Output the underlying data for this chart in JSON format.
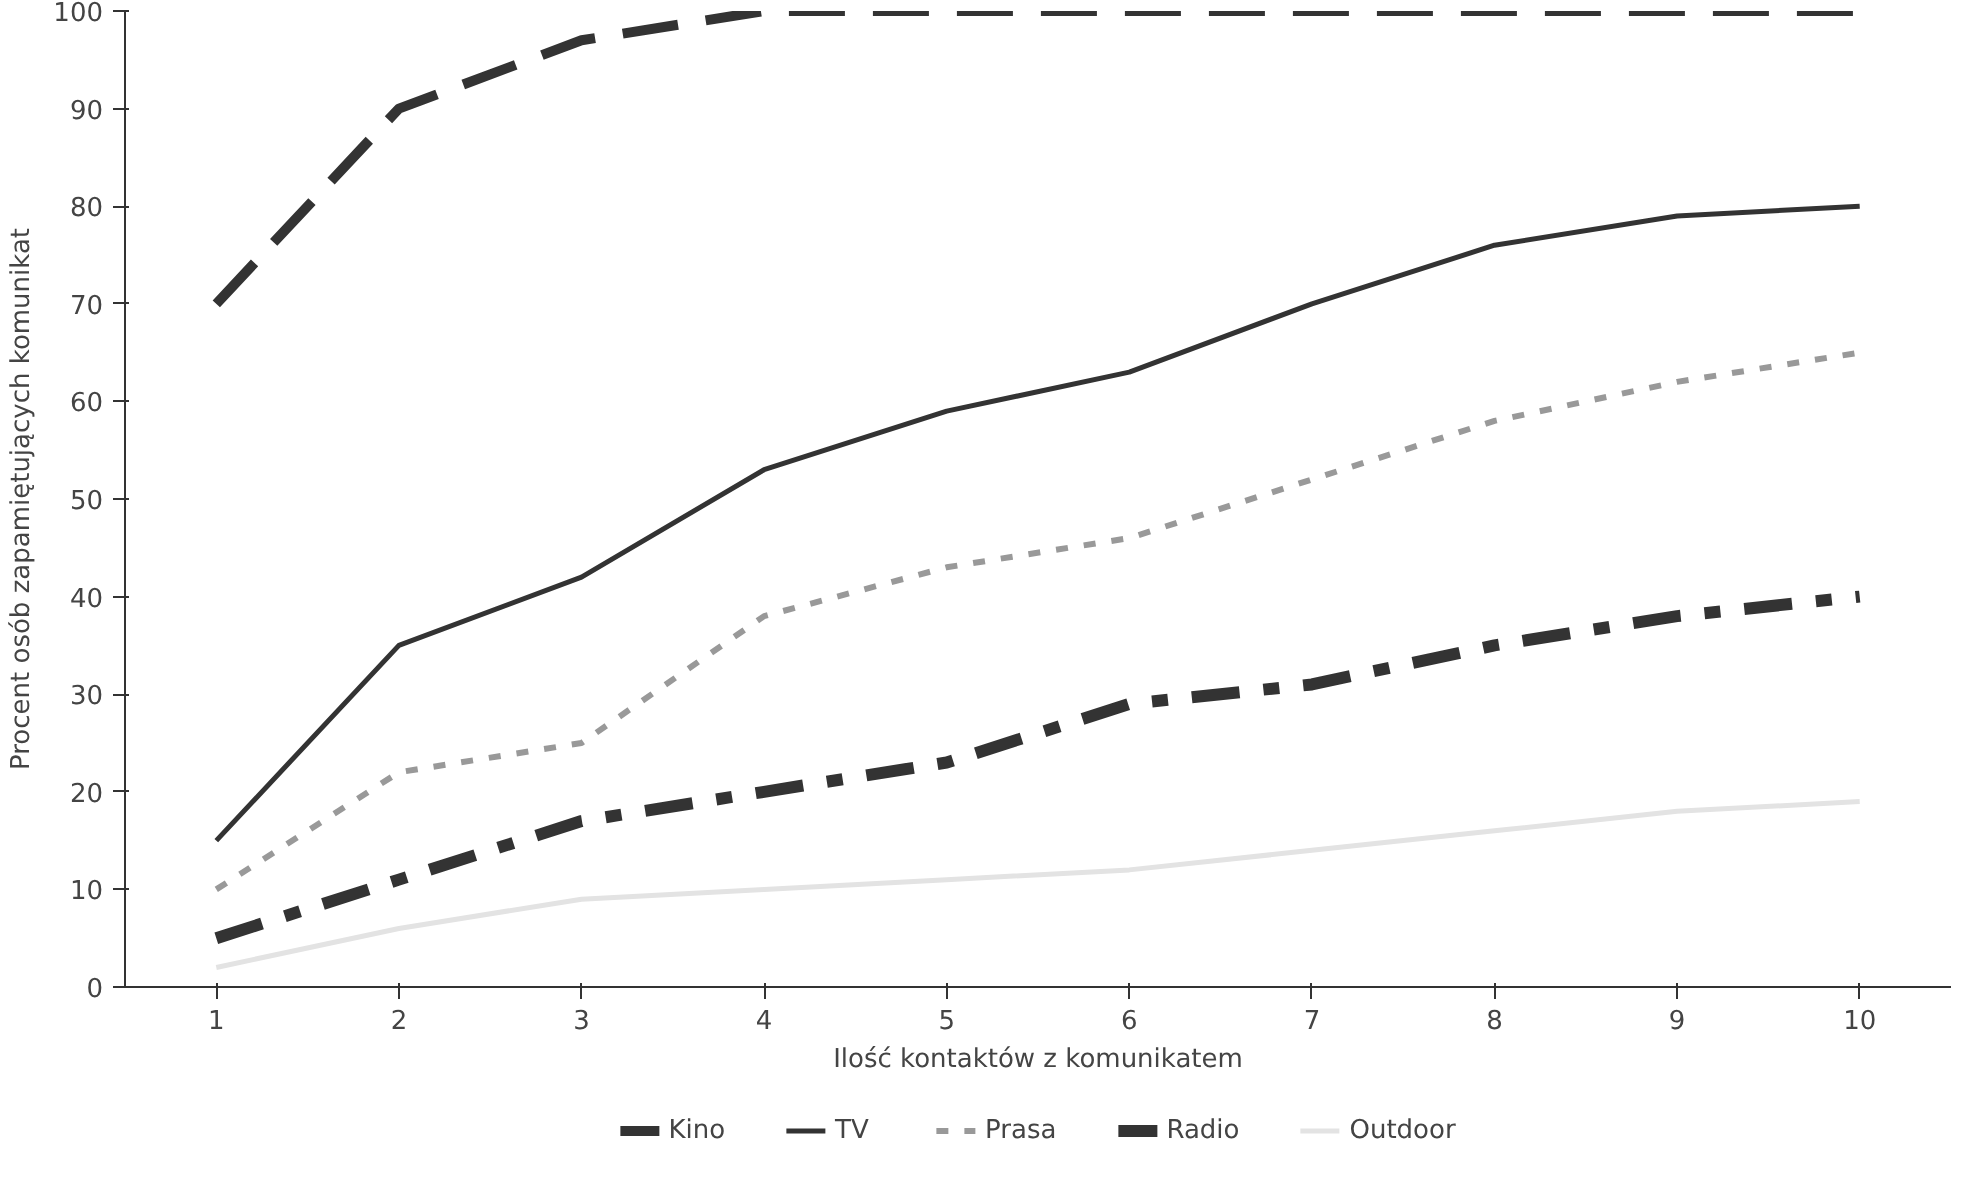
{
  "chart_data": {
    "type": "line",
    "xlabel": "Ilość kontaktów z komunikatem",
    "ylabel": "Procent osób zapamiętujących komunikat",
    "x": [
      1,
      2,
      3,
      4,
      5,
      6,
      7,
      8,
      9,
      10
    ],
    "xlim": [
      0.5,
      10.5
    ],
    "xticks": [
      1,
      2,
      3,
      4,
      5,
      6,
      7,
      8,
      9,
      10
    ],
    "ylim": [
      0,
      100
    ],
    "yticks": [
      0,
      10,
      20,
      30,
      40,
      50,
      60,
      70,
      80,
      90,
      100
    ],
    "grid": false,
    "legend": "bottom",
    "series": [
      {
        "name": "Kino",
        "color": "#333333",
        "line_style": "dashed",
        "values": [
          70,
          90,
          97,
          100,
          100,
          100,
          100,
          100,
          100,
          100
        ]
      },
      {
        "name": "TV",
        "color": "#333333",
        "line_style": "solid",
        "values": [
          15,
          35,
          42,
          53,
          59,
          63,
          70,
          76,
          79,
          80
        ]
      },
      {
        "name": "Prasa",
        "color": "#999999",
        "line_style": "dotted",
        "values": [
          10,
          22,
          25,
          38,
          43,
          46,
          52,
          58,
          62,
          65
        ]
      },
      {
        "name": "Radio",
        "color": "#333333",
        "line_style": "dashdot",
        "values": [
          5,
          11,
          17,
          20,
          23,
          29,
          31,
          35,
          38,
          40
        ]
      },
      {
        "name": "Outdoor",
        "color": "#e3e3e3",
        "line_style": "solid",
        "values": [
          2,
          6,
          9,
          10,
          11,
          12,
          14,
          16,
          18,
          19
        ]
      }
    ]
  }
}
